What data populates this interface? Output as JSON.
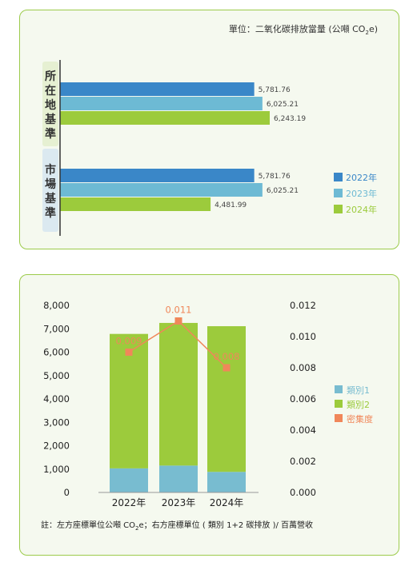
{
  "colors": {
    "y2022": "#3a87c8",
    "y2023": "#6dbad4",
    "y2024": "#9ccb3c",
    "density": "#f0875a",
    "cat1": "#78bcd0",
    "cat2": "#9ccb3c",
    "group_location_bg": "#e6f0d2",
    "group_market_bg": "#dbe9f0",
    "border": "#9ccb4b"
  },
  "chart_data": [
    {
      "type": "bar",
      "orientation": "horizontal",
      "unit_label_prefix": "單位：二氧化碳排放當量 (公噸 CO",
      "unit_label_sub": "2",
      "unit_label_suffix": "e)",
      "groups": [
        {
          "label": "所在地基準",
          "chars": [
            "所",
            "在",
            "地",
            "基",
            "準"
          ],
          "values": [
            5781.76,
            6025.21,
            6243.19
          ],
          "value_labels": [
            "5,781.76",
            "6,025.21",
            "6,243.19"
          ]
        },
        {
          "label": "市場基準",
          "chars": [
            "市",
            "場",
            "基",
            "準"
          ],
          "values": [
            5781.76,
            6025.21,
            4481.99
          ],
          "value_labels": [
            "5,781.76",
            "6,025.21",
            "4,481.99"
          ]
        }
      ],
      "series": [
        "2022年",
        "2023年",
        "2024年"
      ],
      "xlim": [
        0,
        7000
      ]
    },
    {
      "type": "bar",
      "stacked": true,
      "categories": [
        "2022年",
        "2023年",
        "2024年"
      ],
      "series": [
        {
          "name": "類別1",
          "values": [
            1030,
            1150,
            880
          ]
        },
        {
          "name": "類別2",
          "values": [
            5750,
            6100,
            6230
          ]
        }
      ],
      "line_series": {
        "name": "密集度",
        "values": [
          0.009,
          0.011,
          0.008
        ],
        "labels": [
          "0.009",
          "0.011",
          "0.008"
        ]
      },
      "ylim_left": [
        0,
        8000
      ],
      "yticks_left": [
        "0",
        "1,000",
        "2,000",
        "3,000",
        "4,000",
        "5,000",
        "6,000",
        "7,000",
        "8,000"
      ],
      "ylim_right": [
        0,
        0.012
      ],
      "yticks_right": [
        "0.000",
        "0.002",
        "0.004",
        "0.006",
        "0.008",
        "0.010",
        "0.012"
      ],
      "legend": [
        "類別1",
        "類別2",
        "密集度"
      ],
      "footnote_prefix": "註：左方座標單位公噸 CO",
      "footnote_sub": "2",
      "footnote_suffix": "e；右方座標單位 ( 類別 1+2 碳排放 )/ 百萬營收"
    }
  ]
}
